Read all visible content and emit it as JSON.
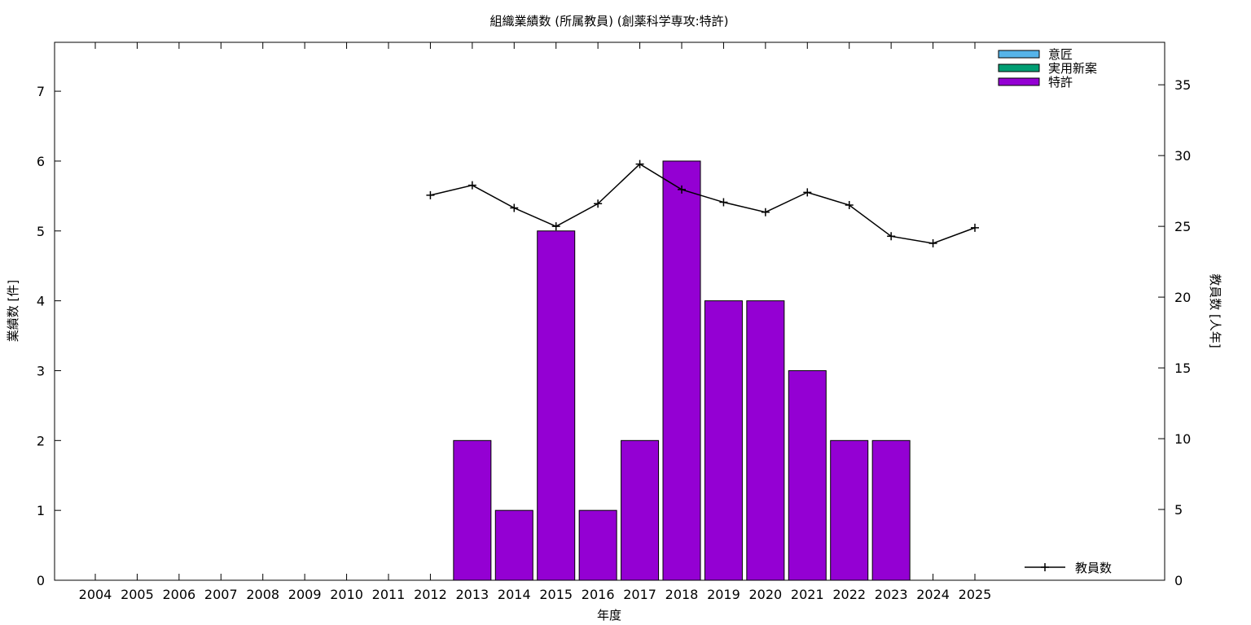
{
  "chart_data": {
    "type": "bar",
    "title": "組織業績数 (所属教員) (創薬科学専攻:特許)",
    "xlabel": "年度",
    "ylabel": "業績数 [件]",
    "y2label": "教員数 [人年]",
    "categories": [
      "2004",
      "2005",
      "2006",
      "2007",
      "2008",
      "2009",
      "2010",
      "2011",
      "2012",
      "2013",
      "2014",
      "2015",
      "2016",
      "2017",
      "2018",
      "2019",
      "2020",
      "2021",
      "2022",
      "2023",
      "2024",
      "2025"
    ],
    "ylim": [
      0,
      7.7
    ],
    "y_ticks": [
      0,
      1,
      2,
      3,
      4,
      5,
      6,
      7
    ],
    "y2lim": [
      0,
      38
    ],
    "y2_ticks": [
      0,
      5,
      10,
      15,
      20,
      25,
      30,
      35
    ],
    "grid": false,
    "legend_position": "top-right",
    "series": [
      {
        "name": "意匠",
        "kind": "bar",
        "axis": "left",
        "color": "#56b4e9",
        "values": [
          0,
          0,
          0,
          0,
          0,
          0,
          0,
          0,
          0,
          0,
          0,
          0,
          0,
          0,
          0,
          0,
          0,
          0,
          0,
          0,
          0,
          0
        ]
      },
      {
        "name": "実用新案",
        "kind": "bar",
        "axis": "left",
        "color": "#009e73",
        "values": [
          0,
          0,
          0,
          0,
          0,
          0,
          0,
          0,
          0,
          0,
          0,
          0,
          0,
          0,
          0,
          0,
          0,
          0,
          0,
          0,
          0,
          0
        ]
      },
      {
        "name": "特許",
        "kind": "bar",
        "axis": "left",
        "color": "#9400d3",
        "values": [
          0,
          0,
          0,
          0,
          0,
          0,
          0,
          0,
          0,
          2,
          1,
          5,
          1,
          2,
          6,
          4,
          4,
          3,
          2,
          2,
          0,
          0
        ]
      },
      {
        "name": "教員数",
        "kind": "line",
        "axis": "right",
        "color": "#000000",
        "legend_position": "bottom-right",
        "values": [
          null,
          null,
          null,
          null,
          null,
          null,
          null,
          null,
          27.2,
          27.9,
          26.3,
          25.0,
          26.6,
          29.4,
          27.6,
          26.7,
          26.0,
          27.4,
          26.5,
          24.3,
          23.8,
          24.9
        ]
      }
    ]
  }
}
